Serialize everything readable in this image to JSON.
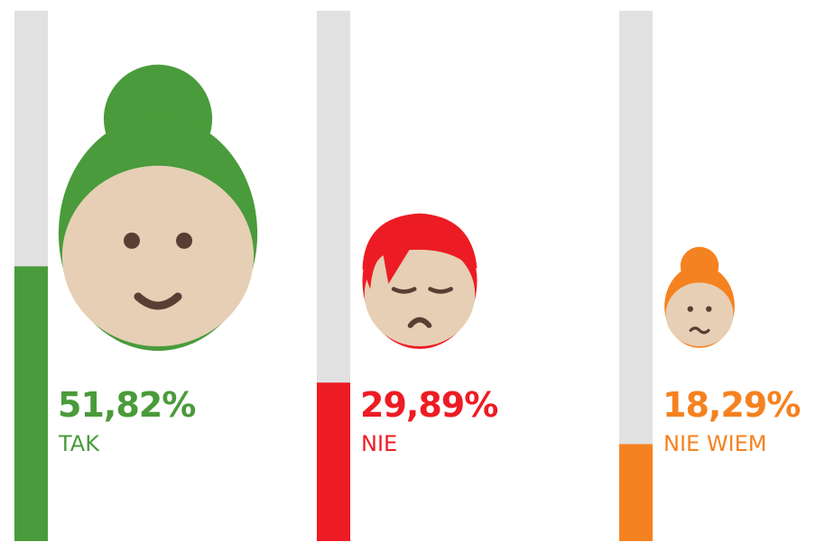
{
  "chart_data": {
    "type": "bar",
    "categories": [
      "TAK",
      "NIE",
      "NIE WIEM"
    ],
    "values": [
      51.82,
      29.89,
      18.29
    ],
    "value_labels": [
      "51,82%",
      "29,89%",
      "18,29%"
    ],
    "colors": [
      "#4a9b3b",
      "#ed1c24",
      "#f58220"
    ],
    "ylim": [
      0,
      100
    ]
  }
}
